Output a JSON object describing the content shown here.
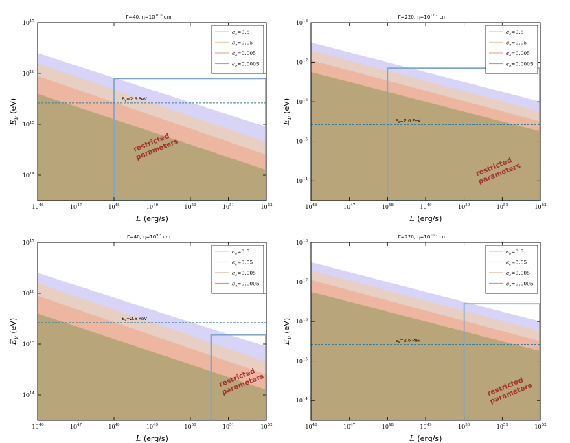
{
  "colors": {
    "band_0_5": "#c9c6f5",
    "band_0_05": "#eccdb3",
    "band_0_005": "#eeae96",
    "band_0_0005": "#b8a57a",
    "ref_line": "#3a7f9a",
    "box": "#7fa7cc",
    "restricted_text": "#a33131"
  },
  "chart_data": [
    {
      "type": "area",
      "title": "Γ=40,  r_i=10^10.6 cm",
      "title_main": "Γ=40,   r",
      "title_sub": "i",
      "title_mid": "=10",
      "title_exp": "10.6",
      "title_end": " cm",
      "xlabel": "L",
      "xlabel_units": "(erg/s)",
      "ylabel": "E",
      "ylabel_sub": "ν",
      "ylabel_units": "(eV)",
      "xlim_log10": [
        46,
        52
      ],
      "ylim_log10": [
        13.5,
        17
      ],
      "xticks": [
        {
          "base": "10",
          "exp": "46"
        },
        {
          "base": "10",
          "exp": "47"
        },
        {
          "base": "10",
          "exp": "48"
        },
        {
          "base": "10",
          "exp": "49"
        },
        {
          "base": "10",
          "exp": "50"
        },
        {
          "base": "10",
          "exp": "51"
        },
        {
          "base": "10",
          "exp": "52"
        }
      ],
      "yticks": [
        {
          "base": "10",
          "exp": "14"
        },
        {
          "base": "10",
          "exp": "15"
        },
        {
          "base": "10",
          "exp": "16"
        },
        {
          "base": "10",
          "exp": "17"
        }
      ],
      "legend": [
        "ϵ_e=0.5",
        "ϵ_e=0.05",
        "ϵ_e=0.005",
        "ϵ_e=0.0005"
      ],
      "legend_items": [
        {
          "sym": "ϵ",
          "sub": "e",
          "val": "=0.5"
        },
        {
          "sym": "ϵ",
          "sub": "e",
          "val": "=0.05"
        },
        {
          "sym": "ϵ",
          "sub": "e",
          "val": "=0.005"
        },
        {
          "sym": "ϵ",
          "sub": "e",
          "val": "=0.0005"
        }
      ],
      "series": [
        {
          "name": "ϵ_e=0.5",
          "log10E_at_L46": 16.4,
          "log10E_at_L52": 14.95
        },
        {
          "name": "ϵ_e=0.05",
          "log10E_at_L46": 16.2,
          "log10E_at_L52": 14.65
        },
        {
          "name": "ϵ_e=0.005",
          "log10E_at_L46": 15.95,
          "log10E_at_L52": 14.4
        },
        {
          "name": "ϵ_e=0.0005",
          "log10E_at_L46": 15.6,
          "log10E_at_L52": 14.1
        }
      ],
      "reference_line": {
        "log10E": 15.42,
        "label": "E_ν=2.6 PeV",
        "lbl_main": "E",
        "lbl_sub": "ν",
        "lbl_rest": "=2.6 PeV"
      },
      "restricted_box": {
        "log10L_min": 48.0,
        "log10L_max": 52,
        "log10E_max": 15.9
      },
      "annotation": {
        "line1": "restricted",
        "line2": "parameters"
      }
    },
    {
      "type": "area",
      "title": "Γ=220,  r_i=10^12.2 cm",
      "title_main": "Γ=220,   r",
      "title_sub": "i",
      "title_mid": "=10",
      "title_exp": "12.2",
      "title_end": " cm",
      "xlabel": "L",
      "xlabel_units": "(erg/s)",
      "ylabel": "E",
      "ylabel_sub": "ν",
      "ylabel_units": "(eV)",
      "xlim_log10": [
        46,
        52
      ],
      "ylim_log10": [
        13.5,
        18
      ],
      "xticks": [
        {
          "base": "10",
          "exp": "46"
        },
        {
          "base": "10",
          "exp": "47"
        },
        {
          "base": "10",
          "exp": "48"
        },
        {
          "base": "10",
          "exp": "49"
        },
        {
          "base": "10",
          "exp": "50"
        },
        {
          "base": "10",
          "exp": "51"
        },
        {
          "base": "10",
          "exp": "52"
        }
      ],
      "yticks": [
        {
          "base": "10",
          "exp": "14"
        },
        {
          "base": "10",
          "exp": "15"
        },
        {
          "base": "10",
          "exp": "16"
        },
        {
          "base": "10",
          "exp": "17"
        },
        {
          "base": "10",
          "exp": "18"
        }
      ],
      "legend": [
        "ϵ_e=0.5",
        "ϵ_e=0.05",
        "ϵ_e=0.005",
        "ϵ_e=0.0005"
      ],
      "legend_items": [
        {
          "sym": "ϵ",
          "sub": "e",
          "val": "=0.5"
        },
        {
          "sym": "ϵ",
          "sub": "e",
          "val": "=0.05"
        },
        {
          "sym": "ϵ",
          "sub": "e",
          "val": "=0.005"
        },
        {
          "sym": "ϵ",
          "sub": "e",
          "val": "=0.0005"
        }
      ],
      "series": [
        {
          "name": "ϵ_e=0.5",
          "log10E_at_L46": 17.5,
          "log10E_at_L52": 16.0
        },
        {
          "name": "ϵ_e=0.05",
          "log10E_at_L46": 17.3,
          "log10E_at_L52": 15.75
        },
        {
          "name": "ϵ_e=0.005",
          "log10E_at_L46": 17.05,
          "log10E_at_L52": 15.5
        },
        {
          "name": "ϵ_e=0.0005",
          "log10E_at_L46": 16.75,
          "log10E_at_L52": 15.25
        }
      ],
      "reference_line": {
        "log10E": 15.42,
        "label": "E_ν=2.6 PeV",
        "lbl_main": "E",
        "lbl_sub": "ν",
        "lbl_rest": "=2.6 PeV"
      },
      "restricted_box": {
        "log10L_min": 48.0,
        "log10L_max": 52,
        "log10E_max": 16.85
      },
      "annotation": {
        "line1": "restricted",
        "line2": "parameters"
      }
    },
    {
      "type": "area",
      "title": "Γ=40,  r_i=10^9.3 cm",
      "title_main": "Γ=40,   r",
      "title_sub": "i",
      "title_mid": "=10",
      "title_exp": "9.3",
      "title_end": " cm",
      "xlabel": "L",
      "xlabel_units": "(erg/s)",
      "ylabel": "E",
      "ylabel_sub": "ν",
      "ylabel_units": "(eV)",
      "xlim_log10": [
        46,
        52
      ],
      "ylim_log10": [
        13.5,
        17
      ],
      "xticks": [
        {
          "base": "10",
          "exp": "46"
        },
        {
          "base": "10",
          "exp": "47"
        },
        {
          "base": "10",
          "exp": "48"
        },
        {
          "base": "10",
          "exp": "49"
        },
        {
          "base": "10",
          "exp": "50"
        },
        {
          "base": "10",
          "exp": "51"
        },
        {
          "base": "10",
          "exp": "52"
        }
      ],
      "yticks": [
        {
          "base": "10",
          "exp": "14"
        },
        {
          "base": "10",
          "exp": "15"
        },
        {
          "base": "10",
          "exp": "16"
        },
        {
          "base": "10",
          "exp": "17"
        }
      ],
      "legend": [
        "ϵ_e=0.5",
        "ϵ_e=0.05",
        "ϵ_e=0.005",
        "ϵ_e=0.0005"
      ],
      "legend_items": [
        {
          "sym": "ϵ",
          "sub": "e",
          "val": "=0.5"
        },
        {
          "sym": "ϵ",
          "sub": "e",
          "val": "=0.05"
        },
        {
          "sym": "ϵ",
          "sub": "e",
          "val": "=0.005"
        },
        {
          "sym": "ϵ",
          "sub": "e",
          "val": "=0.0005"
        }
      ],
      "series": [
        {
          "name": "ϵ_e=0.5",
          "log10E_at_L46": 16.4,
          "log10E_at_L52": 14.95
        },
        {
          "name": "ϵ_e=0.05",
          "log10E_at_L46": 16.2,
          "log10E_at_L52": 14.65
        },
        {
          "name": "ϵ_e=0.005",
          "log10E_at_L46": 15.95,
          "log10E_at_L52": 14.4
        },
        {
          "name": "ϵ_e=0.0005",
          "log10E_at_L46": 15.6,
          "log10E_at_L52": 14.1
        }
      ],
      "reference_line": {
        "log10E": 15.42,
        "label": "E_ν=2.6 PeV",
        "lbl_main": "E",
        "lbl_sub": "ν",
        "lbl_rest": "=2.6 PeV"
      },
      "restricted_box": {
        "log10L_min": 50.55,
        "log10L_max": 52,
        "log10E_max": 15.18
      },
      "annotation": {
        "line1": "restricted",
        "line2": "parameters"
      }
    },
    {
      "type": "area",
      "title": "Γ=220,  r_i=10^10.2 cm",
      "title_main": "Γ=220,   r",
      "title_sub": "i",
      "title_mid": "=10",
      "title_exp": "10.2",
      "title_end": " cm",
      "xlabel": "L",
      "xlabel_units": "(erg/s)",
      "ylabel": "E",
      "ylabel_sub": "ν",
      "ylabel_units": "(eV)",
      "xlim_log10": [
        46,
        52
      ],
      "ylim_log10": [
        13.5,
        18
      ],
      "xticks": [
        {
          "base": "10",
          "exp": "46"
        },
        {
          "base": "10",
          "exp": "47"
        },
        {
          "base": "10",
          "exp": "48"
        },
        {
          "base": "10",
          "exp": "49"
        },
        {
          "base": "10",
          "exp": "50"
        },
        {
          "base": "10",
          "exp": "51"
        },
        {
          "base": "10",
          "exp": "52"
        }
      ],
      "yticks": [
        {
          "base": "10",
          "exp": "14"
        },
        {
          "base": "10",
          "exp": "15"
        },
        {
          "base": "10",
          "exp": "16"
        },
        {
          "base": "10",
          "exp": "17"
        },
        {
          "base": "10",
          "exp": "18"
        }
      ],
      "legend": [
        "ϵ_e=0.5",
        "ϵ_e=0.05",
        "ϵ_e=0.005",
        "ϵ_e=0.0005"
      ],
      "legend_items": [
        {
          "sym": "ϵ",
          "sub": "e",
          "val": "=0.5"
        },
        {
          "sym": "ϵ",
          "sub": "e",
          "val": "=0.05"
        },
        {
          "sym": "ϵ",
          "sub": "e",
          "val": "=0.005"
        },
        {
          "sym": "ϵ",
          "sub": "e",
          "val": "=0.0005"
        }
      ],
      "series": [
        {
          "name": "ϵ_e=0.5",
          "log10E_at_L46": 17.5,
          "log10E_at_L52": 16.0
        },
        {
          "name": "ϵ_e=0.05",
          "log10E_at_L46": 17.3,
          "log10E_at_L52": 15.75
        },
        {
          "name": "ϵ_e=0.005",
          "log10E_at_L46": 17.05,
          "log10E_at_L52": 15.5
        },
        {
          "name": "ϵ_e=0.0005",
          "log10E_at_L46": 16.75,
          "log10E_at_L52": 15.25
        }
      ],
      "reference_line": {
        "log10E": 15.42,
        "label": "E_ν=2.6 PeV",
        "lbl_main": "E",
        "lbl_sub": "ν",
        "lbl_rest": "=2.6 PeV"
      },
      "restricted_box": {
        "log10L_min": 50.0,
        "log10L_max": 52,
        "log10E_max": 16.45
      },
      "annotation": {
        "line1": "restricted",
        "line2": "parameters"
      }
    }
  ]
}
